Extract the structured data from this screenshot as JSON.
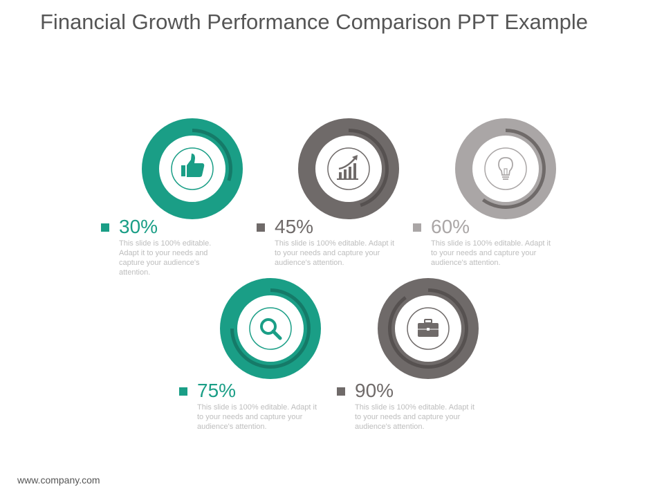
{
  "title": "Financial Growth Performance Comparison PPT Example",
  "footer": "www.company.com",
  "items": [
    {
      "value": "30%",
      "fraction": 0.3,
      "desc": "This slide is 100% editable. Adapt it to your needs and capture your audience's attention.",
      "color": "#1a9e86",
      "arc_color": "#157a68",
      "icon": "thumbs-up-icon"
    },
    {
      "value": "45%",
      "fraction": 0.45,
      "desc": "This slide is 100% editable. Adapt it to your needs and capture your audience's attention.",
      "color": "#6f6a69",
      "arc_color": "#565150",
      "icon": "growth-chart-icon"
    },
    {
      "value": "60%",
      "fraction": 0.6,
      "desc": "This slide is 100% editable. Adapt it to your needs and capture your audience's attention.",
      "color": "#aaa6a6",
      "arc_color": "#6f6a69",
      "icon": "lightbulb-icon"
    },
    {
      "value": "75%",
      "fraction": 0.75,
      "desc": "This slide is 100% editable. Adapt it to your needs and capture your audience's attention.",
      "color": "#1a9e86",
      "arc_color": "#157a68",
      "icon": "magnifier-icon"
    },
    {
      "value": "90%",
      "fraction": 0.9,
      "desc": "This slide is 100% editable. Adapt it to your needs and capture your audience's attention.",
      "color": "#6f6a69",
      "arc_color": "#565150",
      "icon": "briefcase-icon"
    }
  ]
}
